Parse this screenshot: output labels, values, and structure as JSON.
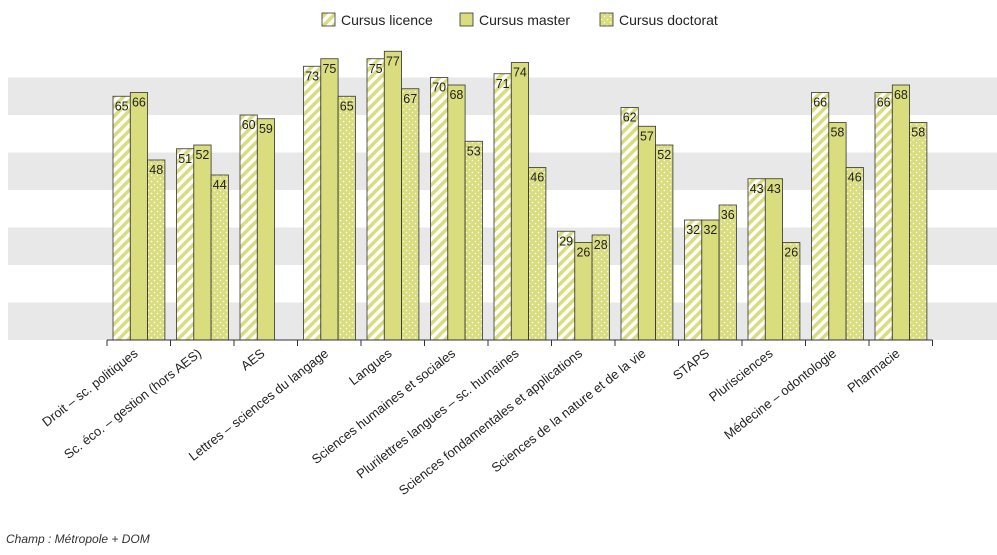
{
  "chart_data": {
    "type": "bar",
    "title": "",
    "xlabel": "",
    "ylabel": "",
    "ylim": [
      0,
      80
    ],
    "grid": "alternating horizontal bands",
    "legend_placement": "top-center",
    "categories": [
      "Droit – sc. politiques",
      "Sc. éco. – gestion (hors AES)",
      "AES",
      "Lettres – sciences du langage",
      "Langues",
      "Sciences humaines et sociales",
      "Plurilettres langues – sc. humaines",
      "Sciences fondamentales et applications",
      "Sciences de la nature et de la vie",
      "STAPS",
      "Plurisciences",
      "Médecine – odontologie",
      "Pharmacie"
    ],
    "series": [
      {
        "name": "Cursus licence",
        "pattern": "diagonal-stripes",
        "values": [
          65,
          51,
          60,
          73,
          75,
          70,
          71,
          29,
          62,
          32,
          43,
          66,
          66
        ]
      },
      {
        "name": "Cursus master",
        "pattern": "solid",
        "values": [
          66,
          52,
          59,
          75,
          77,
          68,
          74,
          26,
          57,
          32,
          43,
          58,
          68
        ]
      },
      {
        "name": "Cursus doctorat",
        "pattern": "dotted",
        "values": [
          48,
          44,
          null,
          65,
          67,
          53,
          46,
          28,
          52,
          36,
          26,
          46,
          58
        ]
      }
    ],
    "colors": {
      "fill": "#d9dd7e",
      "stroke": "#333333",
      "band": "#e8e8e8"
    }
  },
  "footnote": "Champ : Métropole + DOM"
}
